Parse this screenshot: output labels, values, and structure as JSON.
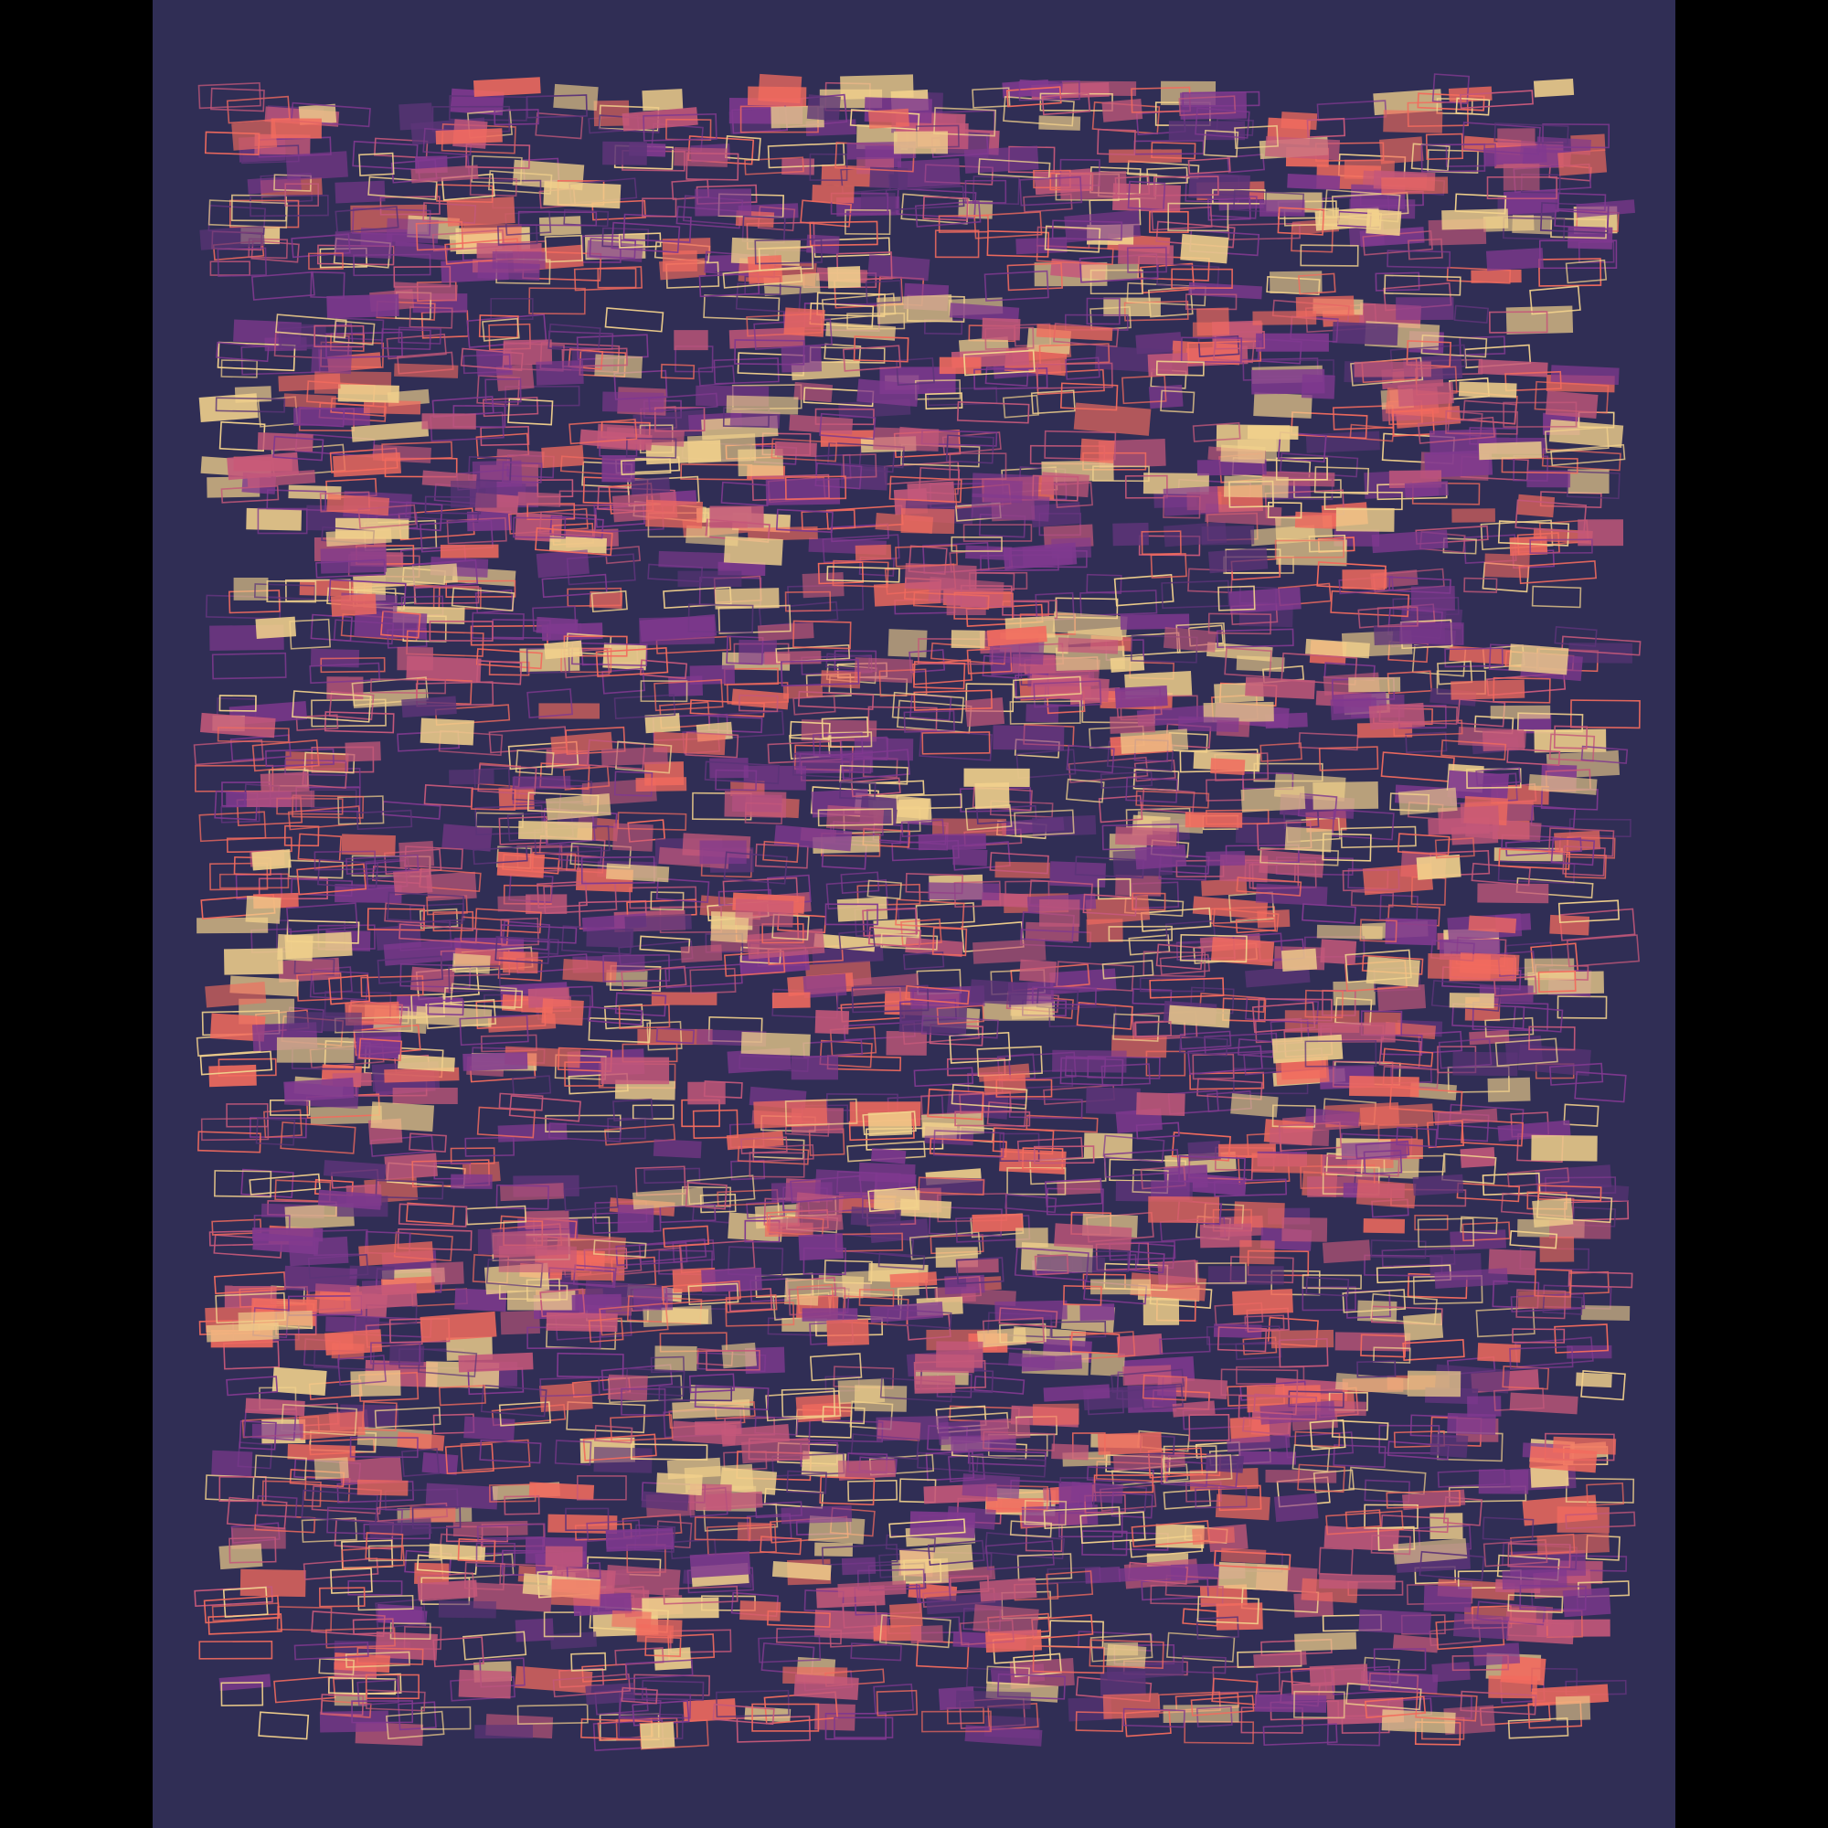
{
  "artwork": {
    "background_color": "#302e55",
    "letterbox_color": "#000000",
    "palette": [
      "#f2d18c",
      "#f26b5e",
      "#c4587a",
      "#80398f",
      "#5c3478"
    ],
    "shape": "jittered rectangles, mix of filled and outlined"
  }
}
